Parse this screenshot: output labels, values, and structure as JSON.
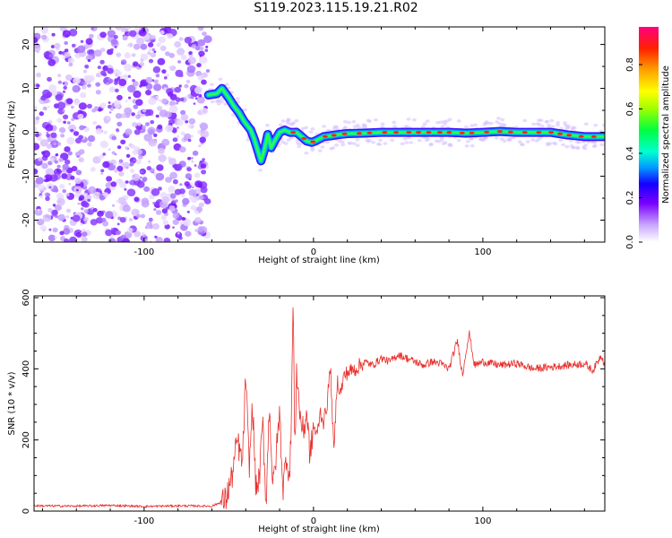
{
  "figure": {
    "title": "S119.2023.115.19.21.R02"
  },
  "chart_data": [
    {
      "type": "heatmap",
      "title": "S119.2023.115.19.21.R02",
      "xlabel": "Height of straight line (km)",
      "ylabel": "Frequency (Hz)",
      "xlim": [
        -165,
        172
      ],
      "ylim": [
        -25,
        24
      ],
      "xticks": [
        -100,
        0,
        100
      ],
      "yticks": [
        -20,
        -10,
        0,
        10,
        20
      ],
      "noise_region_x": [
        -165,
        -62
      ],
      "signal_track": {
        "x": [
          -62,
          -57,
          -54,
          -50,
          -47,
          -44,
          -41,
          -39,
          -37,
          -35,
          -33,
          -31,
          -29,
          -27,
          -25,
          -23,
          -20,
          -17,
          -14,
          -10,
          -7,
          -4,
          -1,
          2,
          6,
          10,
          15,
          20,
          30,
          40,
          50,
          60,
          70,
          80,
          90,
          100,
          110,
          120,
          130,
          140,
          150,
          160,
          172
        ],
        "frequency_hz": [
          8.5,
          8.8,
          10.0,
          7.8,
          6.0,
          4.5,
          2.5,
          1.5,
          0.5,
          -1.5,
          -4.0,
          -6.5,
          -4.0,
          -0.5,
          -3.5,
          -2.0,
          0.0,
          0.5,
          0.0,
          0.0,
          -1.0,
          -2.0,
          -2.3,
          -1.8,
          -1.0,
          -0.8,
          -0.5,
          -0.3,
          -0.2,
          0.0,
          0.0,
          0.0,
          0.0,
          0.0,
          -0.2,
          0.0,
          0.2,
          0.0,
          0.0,
          0.0,
          -0.6,
          -1.0,
          -1.0
        ]
      },
      "colorbar": {
        "label": "Normalized spectral amplitude",
        "ticks": [
          "0.0",
          "0.2",
          "0.4",
          "0.6",
          "0.8"
        ],
        "range": [
          0,
          0.97
        ]
      },
      "grid": false
    },
    {
      "type": "line",
      "xlabel": "Height of straight line (km)",
      "ylabel": "SNR (10 * v/v)",
      "xlim": [
        -165,
        172
      ],
      "ylim": [
        0,
        605
      ],
      "xticks": [
        -100,
        0,
        100
      ],
      "yticks": [
        0,
        200,
        400,
        600
      ],
      "series": [
        {
          "color": "#e8302c",
          "x": [
            -165,
            -140,
            -120,
            -100,
            -80,
            -60,
            -52,
            -48,
            -45,
            -42,
            -40,
            -38,
            -36,
            -34,
            -32,
            -30,
            -28,
            -26,
            -24,
            -22,
            -20,
            -18,
            -16,
            -14,
            -13,
            -12,
            -11,
            -10,
            -8,
            -6,
            -4,
            -2,
            0,
            2,
            4,
            6,
            8,
            10,
            12,
            14,
            16,
            18,
            20,
            25,
            30,
            35,
            40,
            45,
            50,
            55,
            60,
            65,
            70,
            75,
            80,
            85,
            88,
            90,
            92,
            95,
            100,
            110,
            120,
            130,
            140,
            150,
            160,
            165,
            170,
            172
          ],
          "y": [
            15,
            14,
            16,
            13,
            15,
            14,
            30,
            100,
            200,
            130,
            380,
            120,
            300,
            60,
            90,
            250,
            20,
            310,
            60,
            160,
            280,
            60,
            160,
            90,
            300,
            605,
            150,
            400,
            270,
            220,
            280,
            150,
            240,
            210,
            280,
            250,
            300,
            410,
            160,
            370,
            330,
            380,
            390,
            400,
            420,
            410,
            430,
            420,
            440,
            430,
            420,
            410,
            420,
            415,
            400,
            480,
            380,
            450,
            500,
            410,
            420,
            410,
            415,
            400,
            405,
            410,
            415,
            395,
            440,
            410
          ]
        }
      ],
      "grid": false
    }
  ]
}
